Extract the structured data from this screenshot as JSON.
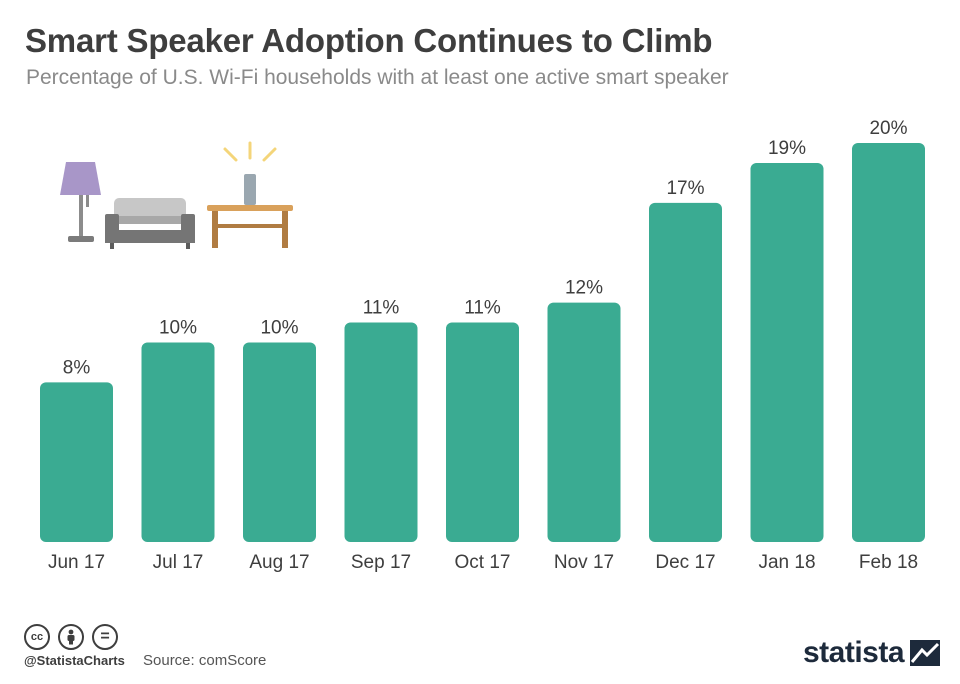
{
  "header": {
    "title": "Smart Speaker Adoption Continues to Climb",
    "subtitle": "Percentage of U.S. Wi-Fi households with at least one active smart speaker"
  },
  "chart_data": {
    "type": "bar",
    "title": "Smart Speaker Adoption Continues to Climb",
    "subtitle": "Percentage of U.S. Wi-Fi households with at least one active smart speaker",
    "categories": [
      "Jun 17",
      "Jul 17",
      "Aug 17",
      "Sep 17",
      "Oct 17",
      "Nov 17",
      "Dec 17",
      "Jan 18",
      "Feb 18"
    ],
    "values": [
      8,
      10,
      10,
      11,
      11,
      12,
      17,
      19,
      20
    ],
    "value_labels": [
      "8%",
      "10%",
      "10%",
      "11%",
      "11%",
      "12%",
      "17%",
      "19%",
      "20%"
    ],
    "xlabel": "",
    "ylabel": "",
    "ylim": [
      0,
      20
    ],
    "grid": false,
    "legend": "none",
    "colors": {
      "bar": "#3aab92"
    }
  },
  "illustration": {
    "icons": [
      "lamp-icon",
      "sofa-icon",
      "table-icon",
      "smart-speaker-icon"
    ]
  },
  "footer": {
    "icons": [
      "cc-icon",
      "by-icon",
      "nd-icon"
    ],
    "cc_glyphs": [
      "cc",
      "=",
      ""
    ],
    "handle": "@StatistaCharts",
    "source": "Source: comScore",
    "logo_text": "statista"
  }
}
